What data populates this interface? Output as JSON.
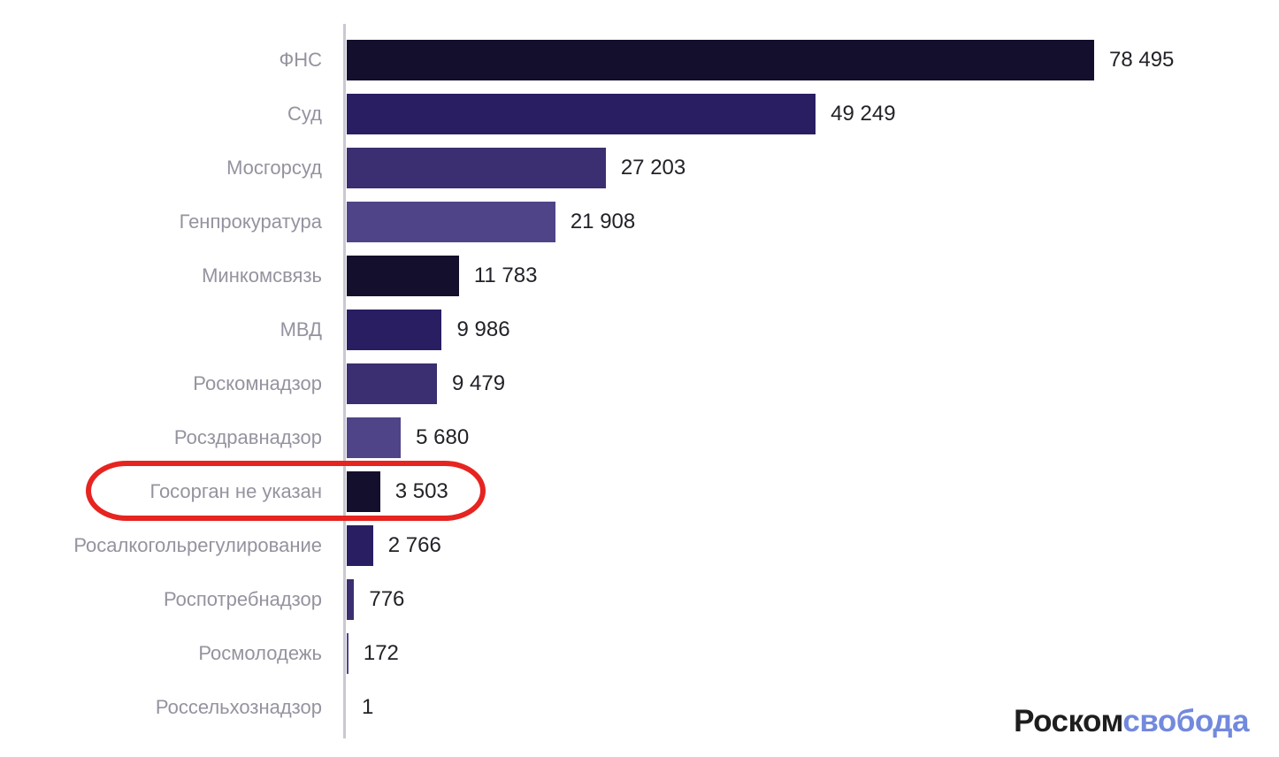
{
  "chart_data": {
    "type": "bar",
    "orientation": "horizontal",
    "title": "",
    "xlabel": "",
    "ylabel": "",
    "xlim": [
      0,
      80000
    ],
    "grid": false,
    "legend": false,
    "categories": [
      "ФНС",
      "Суд",
      "Мосгорсуд",
      "Генпрокуратура",
      "Минкомсвязь",
      "МВД",
      "Роскомнадзор",
      "Росздравнадзор",
      "Госорган не указан",
      "Росалкогольрегулирование",
      "Роспотребнадзор",
      "Росмолодежь",
      "Россельхознадзор"
    ],
    "values": [
      78495,
      49249,
      27203,
      21908,
      11783,
      9986,
      9479,
      5680,
      3503,
      2766,
      776,
      172,
      1
    ],
    "value_labels": [
      "78 495",
      "49 249",
      "27 203",
      "21 908",
      "11 783",
      "9 986",
      "9 479",
      "5 680",
      "3 503",
      "2 766",
      "776",
      "172",
      "1"
    ],
    "bar_color_cycle": [
      "#150f2e",
      "#2a1e63",
      "#3b2e71",
      "#4f4488"
    ],
    "label_color": "#94939f",
    "value_color": "#222228",
    "axis_color": "#c9c8d3"
  },
  "annotation": {
    "shape": "red-ellipse",
    "color": "#e62420",
    "target_category": "Госорган не указан",
    "target_index": 8
  },
  "branding": {
    "logo_part1": "Роском",
    "logo_part2": "свобода",
    "part1_color": "#1e1e1e",
    "part2_color": "#7289dd"
  }
}
